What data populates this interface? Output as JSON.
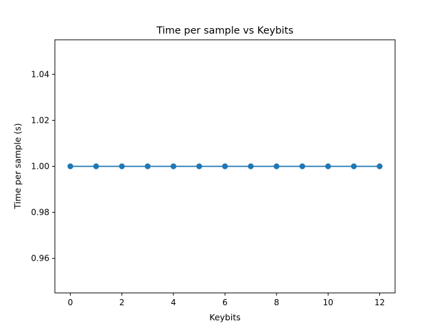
{
  "chart_data": {
    "type": "line",
    "title": "Time per sample vs Keybits",
    "xlabel": "Keybits",
    "ylabel": "Time per sample (s)",
    "xlim": [
      -0.6,
      12.6
    ],
    "ylim": [
      0.945,
      1.055
    ],
    "x_ticks": [
      0,
      2,
      4,
      6,
      8,
      10,
      12
    ],
    "x_tick_labels": [
      "0",
      "2",
      "4",
      "6",
      "8",
      "10",
      "12"
    ],
    "y_ticks": [
      0.96,
      0.98,
      1.0,
      1.02,
      1.04
    ],
    "y_tick_labels": [
      "0.96",
      "0.98",
      "1.00",
      "1.02",
      "1.04"
    ],
    "grid": false,
    "series": [
      {
        "color": "#1f77b4",
        "marker": "circle",
        "x": [
          0,
          1,
          2,
          3,
          4,
          5,
          6,
          7,
          8,
          9,
          10,
          11,
          12
        ],
        "y": [
          1.0,
          1.0,
          1.0,
          1.0,
          1.0,
          1.0,
          1.0,
          1.0,
          1.0,
          1.0,
          1.0,
          1.0,
          1.0
        ]
      }
    ]
  }
}
